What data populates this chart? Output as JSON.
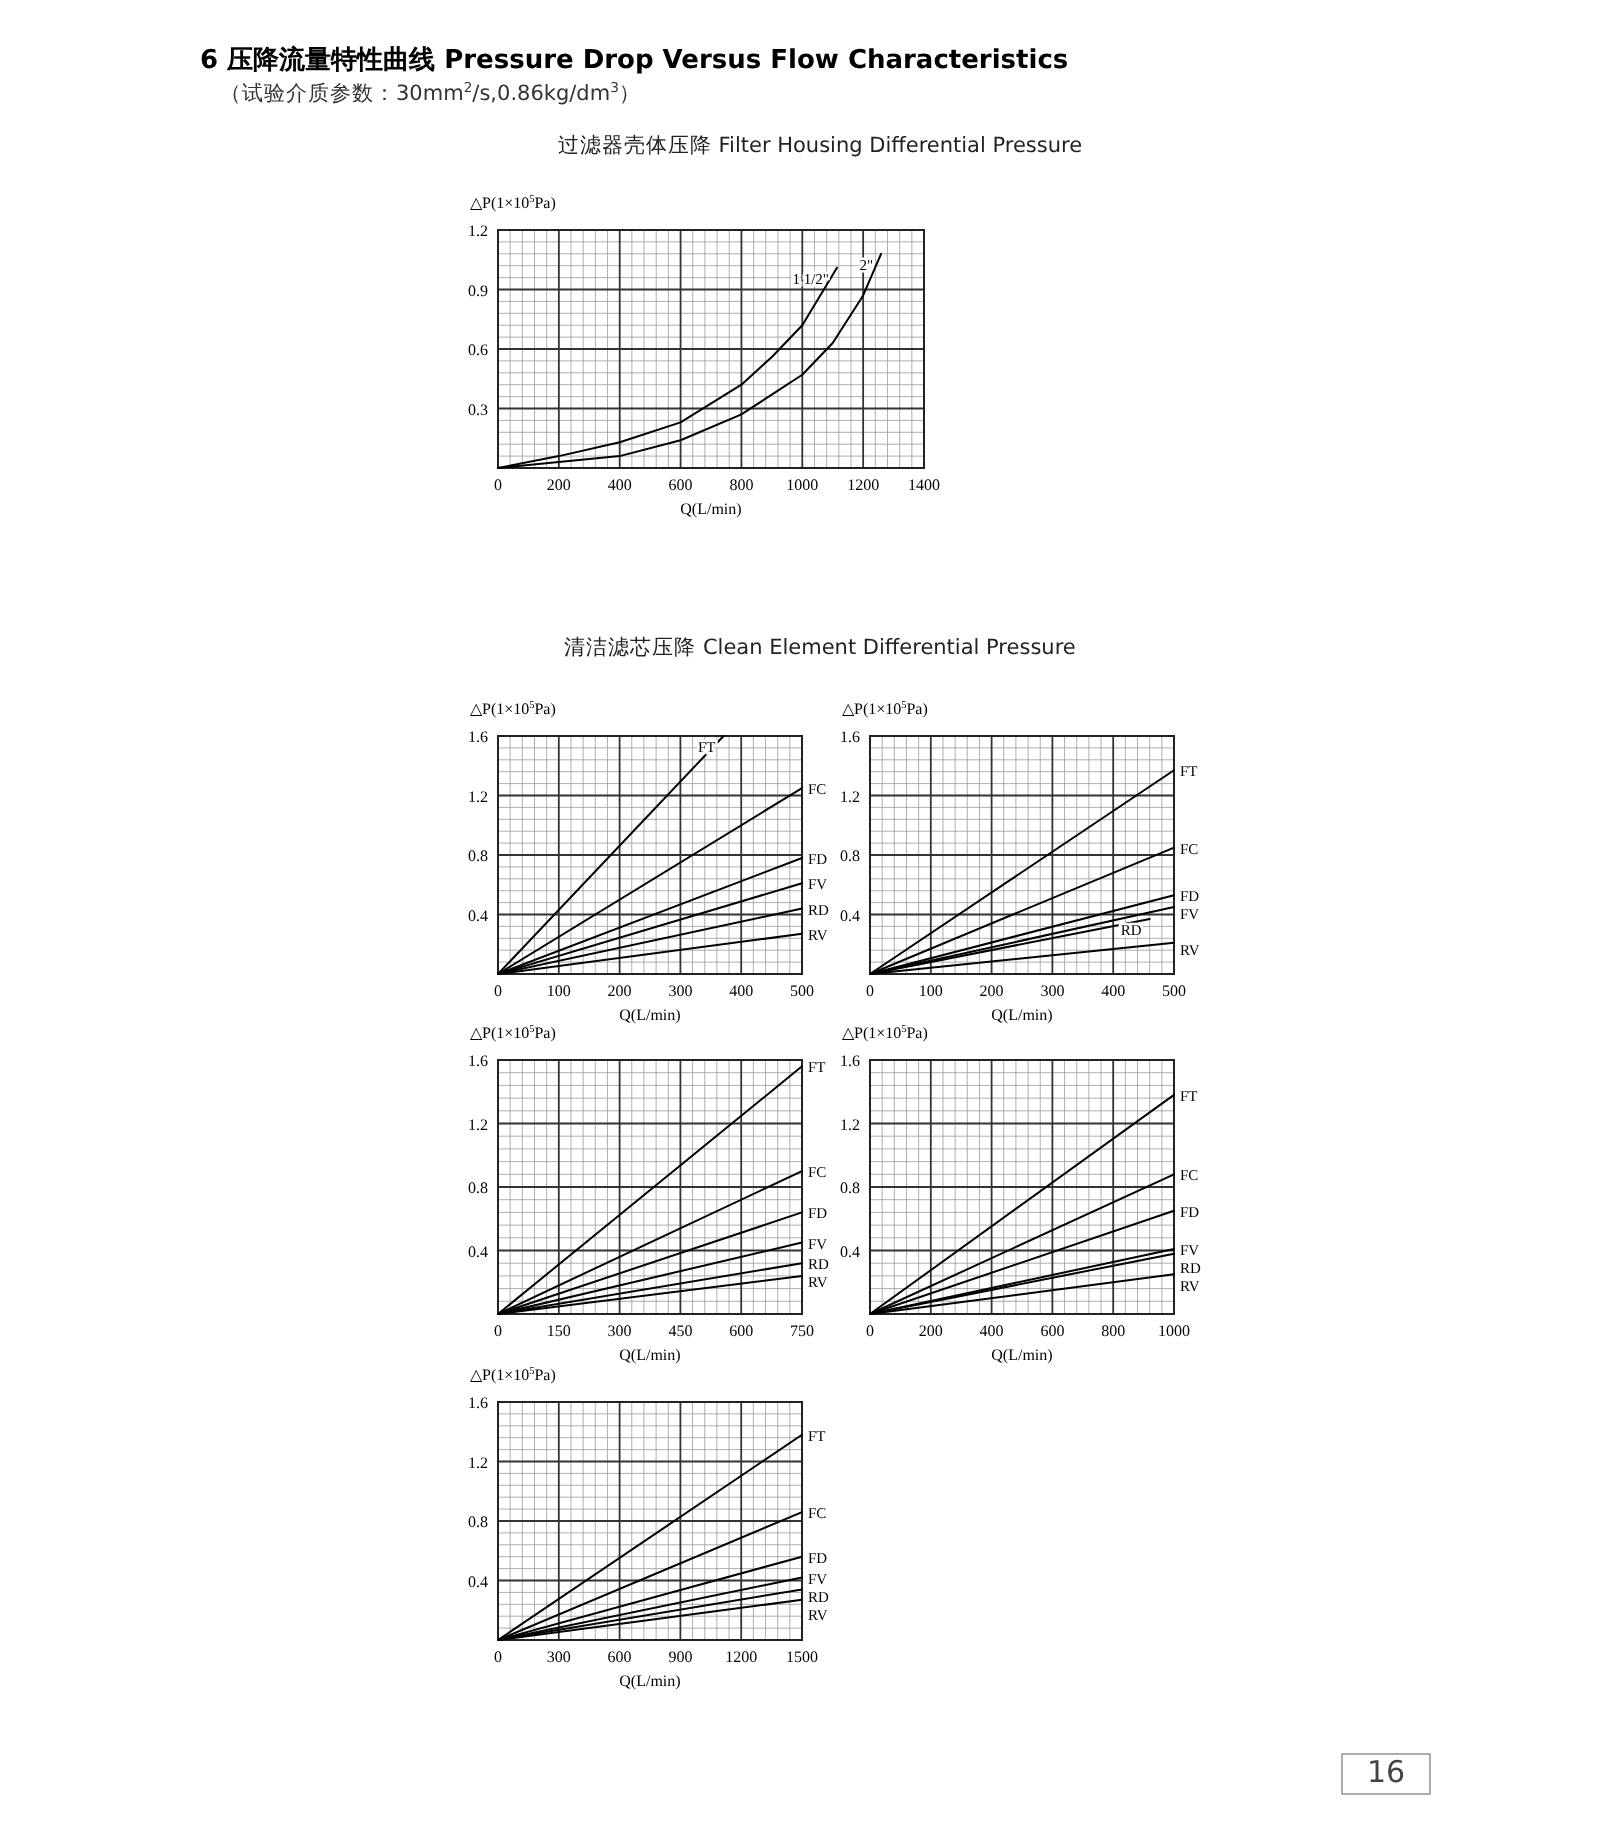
{
  "chart_data": [
    {
      "type": "line",
      "title": "6 压降流量特性曲线 Pressure Drop Versus Flow Characteristics",
      "subtitle": "（试验介质参数：30mm$^{2}$/s,0.86kg/dm$^{3}$）",
      "annotations": [
        "过滤器壳体压降 Filter Housing Differential Pressure"
      ],
      "xlabel": "Q(L/min)",
      "ylabel": "△P(1×10$^{5}$Pa)",
      "xlim": [
        0,
        1400
      ],
      "xticks": [
        0,
        200,
        400,
        600,
        800,
        1000,
        1200,
        1400
      ],
      "ylim": [
        0,
        1.2
      ],
      "yticks": [
        0.3,
        0.6,
        0.9,
        1.2
      ],
      "grid": true,
      "series": [
        {
          "name": "1 1/2\"",
          "color": "#000000",
          "x": [
            0,
            200,
            400,
            600,
            800,
            900,
            1000,
            1114
          ],
          "values": [
            0,
            0.06,
            0.13,
            0.23,
            0.42,
            0.56,
            0.72,
            1.01
          ]
        },
        {
          "name": "2\"",
          "color": "#000000",
          "x": [
            0,
            400,
            600,
            800,
            1000,
            1100,
            1200,
            1259
          ],
          "values": [
            0,
            0.06,
            0.14,
            0.27,
            0.47,
            0.63,
            0.87,
            1.08
          ]
        }
      ]
    },
    {
      "type": "line",
      "annotations": [
        "清洁滤芯压降 Clean Element Differential Pressure"
      ],
      "xlabel": "Q(L/min)",
      "ylabel": "△P(1×10$^{5}$Pa)",
      "xlim": [
        0,
        500
      ],
      "xticks": [
        0,
        100,
        200,
        300,
        400,
        500
      ],
      "ylim": [
        0,
        1.6
      ],
      "yticks": [
        0.4,
        0.8,
        1.2,
        1.6
      ],
      "grid": true,
      "series": [
        {
          "name": "FT",
          "color": "#000000",
          "x": [
            0,
            371
          ],
          "values": [
            0,
            1.6
          ]
        },
        {
          "name": "FC",
          "color": "#000000",
          "x": [
            0,
            500
          ],
          "values": [
            0,
            1.25
          ]
        },
        {
          "name": "FD",
          "color": "#000000",
          "x": [
            0,
            500
          ],
          "values": [
            0,
            0.78
          ]
        },
        {
          "name": "FV",
          "color": "#000000",
          "x": [
            0,
            500
          ],
          "values": [
            0,
            0.61
          ]
        },
        {
          "name": "RD",
          "color": "#000000",
          "x": [
            0,
            500
          ],
          "values": [
            0,
            0.44
          ]
        },
        {
          "name": "RV",
          "color": "#000000",
          "x": [
            0,
            500
          ],
          "values": [
            0,
            0.27
          ]
        }
      ]
    },
    {
      "type": "line",
      "xlabel": "Q(L/min)",
      "ylabel": "△P(1×10$^{5}$Pa)",
      "xlim": [
        0,
        500
      ],
      "xticks": [
        0,
        100,
        200,
        300,
        400,
        500
      ],
      "ylim": [
        0,
        1.6
      ],
      "yticks": [
        0.4,
        0.8,
        1.2,
        1.6
      ],
      "grid": true,
      "series": [
        {
          "name": "FT",
          "color": "#000000",
          "x": [
            0,
            500
          ],
          "values": [
            0,
            1.37
          ]
        },
        {
          "name": "FC",
          "color": "#000000",
          "x": [
            0,
            500
          ],
          "values": [
            0,
            0.85
          ]
        },
        {
          "name": "FD",
          "color": "#000000",
          "x": [
            0,
            500
          ],
          "values": [
            0,
            0.53
          ]
        },
        {
          "name": "FV",
          "color": "#000000",
          "x": [
            0,
            500
          ],
          "values": [
            0,
            0.45
          ]
        },
        {
          "name": "RD",
          "color": "#000000",
          "x": [
            0,
            460
          ],
          "values": [
            0,
            0.37
          ]
        },
        {
          "name": "RV",
          "color": "#000000",
          "x": [
            0,
            500
          ],
          "values": [
            0,
            0.21
          ]
        }
      ]
    },
    {
      "type": "line",
      "xlabel": "Q(L/min)",
      "ylabel": "△P(1×10$^{5}$Pa)",
      "xlim": [
        0,
        750
      ],
      "xticks": [
        0,
        150,
        300,
        450,
        600,
        750
      ],
      "ylim": [
        0,
        1.6
      ],
      "yticks": [
        0.4,
        0.8,
        1.2,
        1.6
      ],
      "grid": true,
      "series": [
        {
          "name": "FT",
          "color": "#000000",
          "x": [
            0,
            750
          ],
          "values": [
            0,
            1.56
          ]
        },
        {
          "name": "FC",
          "color": "#000000",
          "x": [
            0,
            750
          ],
          "values": [
            0,
            0.9
          ]
        },
        {
          "name": "FD",
          "color": "#000000",
          "x": [
            0,
            750
          ],
          "values": [
            0,
            0.64
          ]
        },
        {
          "name": "FV",
          "color": "#000000",
          "x": [
            0,
            750
          ],
          "values": [
            0,
            0.45
          ]
        },
        {
          "name": "RD",
          "color": "#000000",
          "x": [
            0,
            750
          ],
          "values": [
            0,
            0.32
          ]
        },
        {
          "name": "RV",
          "color": "#000000",
          "x": [
            0,
            750
          ],
          "values": [
            0,
            0.24
          ]
        }
      ]
    },
    {
      "type": "line",
      "xlabel": "Q(L/min)",
      "ylabel": "△P(1×10$^{5}$Pa)",
      "xlim": [
        0,
        1000
      ],
      "xticks": [
        0,
        200,
        400,
        600,
        800,
        1000
      ],
      "ylim": [
        0,
        1.6
      ],
      "yticks": [
        0.4,
        0.8,
        1.2,
        1.6
      ],
      "grid": true,
      "series": [
        {
          "name": "FT",
          "color": "#000000",
          "x": [
            0,
            1000
          ],
          "values": [
            0,
            1.38
          ]
        },
        {
          "name": "FC",
          "color": "#000000",
          "x": [
            0,
            1000
          ],
          "values": [
            0,
            0.88
          ]
        },
        {
          "name": "FD",
          "color": "#000000",
          "x": [
            0,
            1000
          ],
          "values": [
            0,
            0.65
          ]
        },
        {
          "name": "FV",
          "color": "#000000",
          "x": [
            0,
            1000
          ],
          "values": [
            0,
            0.41
          ]
        },
        {
          "name": "RD",
          "color": "#000000",
          "x": [
            0,
            1000
          ],
          "values": [
            0,
            0.38
          ]
        },
        {
          "name": "RV",
          "color": "#000000",
          "x": [
            0,
            1000
          ],
          "values": [
            0,
            0.25
          ]
        }
      ]
    },
    {
      "type": "line",
      "annotations": [
        "16"
      ],
      "xlabel": "Q(L/min)",
      "ylabel": "△P(1×10$^{5}$Pa)",
      "xlim": [
        0,
        1500
      ],
      "xticks": [
        0,
        300,
        600,
        900,
        1200,
        1500
      ],
      "ylim": [
        0,
        1.6
      ],
      "yticks": [
        0.4,
        0.8,
        1.2,
        1.6
      ],
      "grid": true,
      "series": [
        {
          "name": "FT",
          "color": "#000000",
          "x": [
            0,
            1500
          ],
          "values": [
            0,
            1.38
          ]
        },
        {
          "name": "FC",
          "color": "#000000",
          "x": [
            0,
            1500
          ],
          "values": [
            0,
            0.86
          ]
        },
        {
          "name": "FD",
          "color": "#000000",
          "x": [
            0,
            1500
          ],
          "values": [
            0,
            0.56
          ]
        },
        {
          "name": "FV",
          "color": "#000000",
          "x": [
            0,
            1500
          ],
          "values": [
            0,
            0.42
          ]
        },
        {
          "name": "RD",
          "color": "#000000",
          "x": [
            0,
            1500
          ],
          "values": [
            0,
            0.34
          ]
        },
        {
          "name": "RV",
          "color": "#000000",
          "x": [
            0,
            1500
          ],
          "values": [
            0,
            0.27
          ]
        }
      ]
    }
  ]
}
